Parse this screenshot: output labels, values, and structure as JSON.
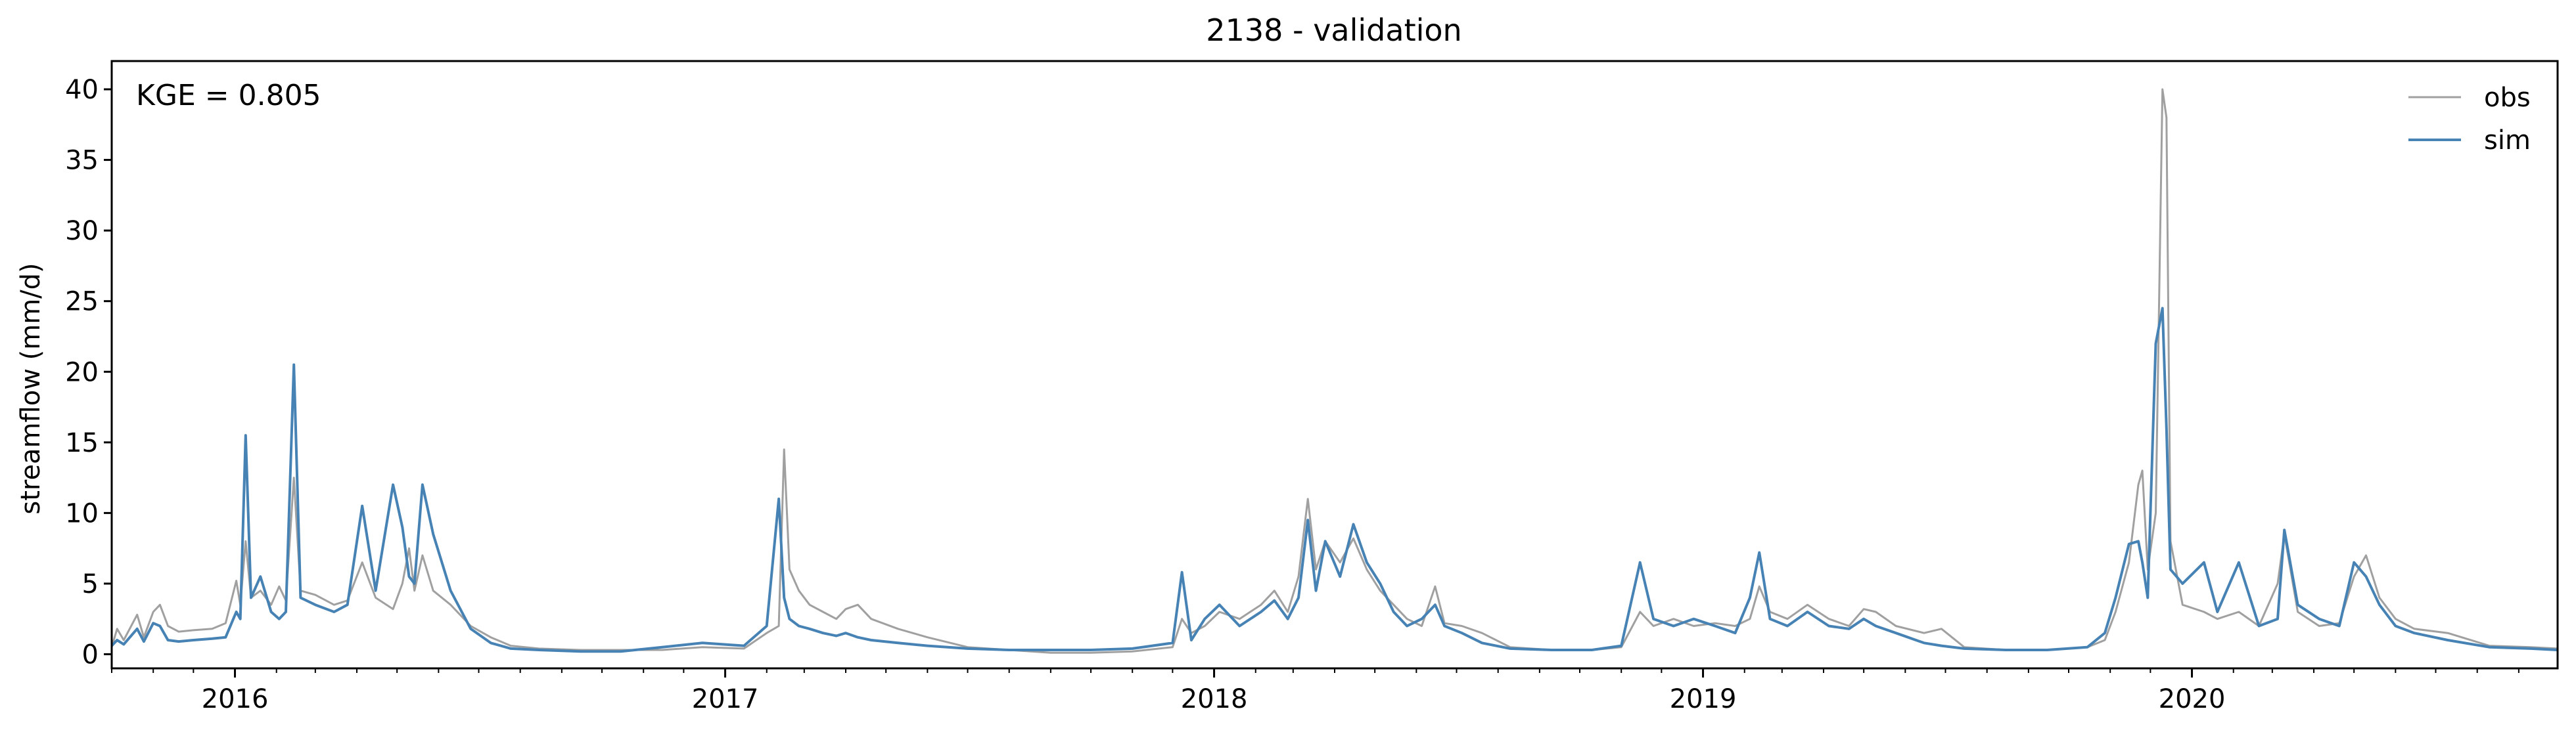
{
  "chart_data": {
    "type": "line",
    "title": "2138 - validation",
    "xlabel": "",
    "ylabel": "streamflow (mm/d)",
    "annotation": "KGE = 0.805",
    "xlim": [
      "2015-10-01",
      "2020-09-30"
    ],
    "ylim": [
      -1,
      42
    ],
    "yticks": [
      0,
      5,
      10,
      15,
      20,
      25,
      30,
      35,
      40
    ],
    "xticks": [
      {
        "date": "2016-01-01",
        "label": "2016"
      },
      {
        "date": "2017-01-01",
        "label": "2017"
      },
      {
        "date": "2018-01-01",
        "label": "2018"
      },
      {
        "date": "2019-01-01",
        "label": "2019"
      },
      {
        "date": "2020-01-01",
        "label": "2020"
      }
    ],
    "grid": false,
    "legend_position": "top-right",
    "series": [
      {
        "name": "obs",
        "color": "#a0a0a0",
        "points": [
          [
            "2015-10-01",
            0.5
          ],
          [
            "2015-10-05",
            1.8
          ],
          [
            "2015-10-10",
            1.0
          ],
          [
            "2015-10-20",
            2.8
          ],
          [
            "2015-10-25",
            1.2
          ],
          [
            "2015-11-01",
            3.0
          ],
          [
            "2015-11-06",
            3.5
          ],
          [
            "2015-11-12",
            2.0
          ],
          [
            "2015-11-20",
            1.6
          ],
          [
            "2015-12-01",
            1.7
          ],
          [
            "2015-12-15",
            1.8
          ],
          [
            "2015-12-25",
            2.2
          ],
          [
            "2016-01-02",
            5.2
          ],
          [
            "2016-01-05",
            3.5
          ],
          [
            "2016-01-09",
            8.0
          ],
          [
            "2016-01-13",
            4.0
          ],
          [
            "2016-01-20",
            4.5
          ],
          [
            "2016-01-28",
            3.5
          ],
          [
            "2016-02-03",
            4.8
          ],
          [
            "2016-02-08",
            3.8
          ],
          [
            "2016-02-14",
            12.5
          ],
          [
            "2016-02-19",
            4.5
          ],
          [
            "2016-03-01",
            4.2
          ],
          [
            "2016-03-15",
            3.5
          ],
          [
            "2016-03-25",
            3.8
          ],
          [
            "2016-04-05",
            6.5
          ],
          [
            "2016-04-15",
            4.0
          ],
          [
            "2016-04-28",
            3.2
          ],
          [
            "2016-05-05",
            5.0
          ],
          [
            "2016-05-10",
            7.5
          ],
          [
            "2016-05-14",
            4.5
          ],
          [
            "2016-05-20",
            7.0
          ],
          [
            "2016-05-28",
            4.5
          ],
          [
            "2016-06-10",
            3.5
          ],
          [
            "2016-06-25",
            2.0
          ],
          [
            "2016-07-10",
            1.2
          ],
          [
            "2016-07-25",
            0.6
          ],
          [
            "2016-08-15",
            0.4
          ],
          [
            "2016-09-15",
            0.3
          ],
          [
            "2016-10-15",
            0.3
          ],
          [
            "2016-11-15",
            0.3
          ],
          [
            "2016-12-15",
            0.5
          ],
          [
            "2017-01-15",
            0.4
          ],
          [
            "2017-02-01",
            1.5
          ],
          [
            "2017-02-10",
            2.0
          ],
          [
            "2017-02-14",
            14.5
          ],
          [
            "2017-02-18",
            6.0
          ],
          [
            "2017-02-25",
            4.5
          ],
          [
            "2017-03-05",
            3.5
          ],
          [
            "2017-03-15",
            3.0
          ],
          [
            "2017-03-25",
            2.5
          ],
          [
            "2017-04-01",
            3.2
          ],
          [
            "2017-04-10",
            3.5
          ],
          [
            "2017-04-20",
            2.5
          ],
          [
            "2017-05-10",
            1.8
          ],
          [
            "2017-06-01",
            1.2
          ],
          [
            "2017-07-01",
            0.5
          ],
          [
            "2017-08-01",
            0.3
          ],
          [
            "2017-09-01",
            0.1
          ],
          [
            "2017-10-01",
            0.1
          ],
          [
            "2017-11-01",
            0.2
          ],
          [
            "2017-12-01",
            0.5
          ],
          [
            "2017-12-08",
            2.5
          ],
          [
            "2017-12-15",
            1.5
          ],
          [
            "2017-12-25",
            2.0
          ],
          [
            "2018-01-05",
            3.0
          ],
          [
            "2018-01-20",
            2.5
          ],
          [
            "2018-02-05",
            3.5
          ],
          [
            "2018-02-15",
            4.5
          ],
          [
            "2018-02-25",
            3.0
          ],
          [
            "2018-03-05",
            5.5
          ],
          [
            "2018-03-12",
            11.0
          ],
          [
            "2018-03-18",
            6.0
          ],
          [
            "2018-03-25",
            8.0
          ],
          [
            "2018-04-05",
            6.5
          ],
          [
            "2018-04-15",
            8.2
          ],
          [
            "2018-04-25",
            6.0
          ],
          [
            "2018-05-05",
            4.5
          ],
          [
            "2018-05-15",
            3.5
          ],
          [
            "2018-05-25",
            2.5
          ],
          [
            "2018-06-05",
            2.0
          ],
          [
            "2018-06-15",
            4.8
          ],
          [
            "2018-06-22",
            2.2
          ],
          [
            "2018-07-05",
            2.0
          ],
          [
            "2018-07-20",
            1.5
          ],
          [
            "2018-08-10",
            0.5
          ],
          [
            "2018-09-10",
            0.3
          ],
          [
            "2018-10-10",
            0.3
          ],
          [
            "2018-11-01",
            0.5
          ],
          [
            "2018-11-15",
            3.0
          ],
          [
            "2018-11-25",
            2.0
          ],
          [
            "2018-12-10",
            2.5
          ],
          [
            "2018-12-25",
            2.0
          ],
          [
            "2019-01-10",
            2.2
          ],
          [
            "2019-01-25",
            2.0
          ],
          [
            "2019-02-05",
            2.5
          ],
          [
            "2019-02-12",
            4.8
          ],
          [
            "2019-02-20",
            3.0
          ],
          [
            "2019-03-05",
            2.5
          ],
          [
            "2019-03-20",
            3.5
          ],
          [
            "2019-04-05",
            2.5
          ],
          [
            "2019-04-20",
            2.0
          ],
          [
            "2019-05-01",
            3.2
          ],
          [
            "2019-05-10",
            3.0
          ],
          [
            "2019-05-25",
            2.0
          ],
          [
            "2019-06-15",
            1.5
          ],
          [
            "2019-06-28",
            1.8
          ],
          [
            "2019-07-15",
            0.5
          ],
          [
            "2019-08-15",
            0.3
          ],
          [
            "2019-09-15",
            0.3
          ],
          [
            "2019-10-15",
            0.5
          ],
          [
            "2019-10-28",
            1.0
          ],
          [
            "2019-11-05",
            3.0
          ],
          [
            "2019-11-15",
            6.5
          ],
          [
            "2019-11-22",
            12.0
          ],
          [
            "2019-11-25",
            13.0
          ],
          [
            "2019-11-29",
            6.0
          ],
          [
            "2019-12-05",
            10.0
          ],
          [
            "2019-12-10",
            40.0
          ],
          [
            "2019-12-13",
            38.0
          ],
          [
            "2019-12-16",
            8.0
          ],
          [
            "2019-12-25",
            3.5
          ],
          [
            "2020-01-10",
            3.0
          ],
          [
            "2020-01-20",
            2.5
          ],
          [
            "2020-02-05",
            3.0
          ],
          [
            "2020-02-20",
            2.0
          ],
          [
            "2020-03-05",
            5.0
          ],
          [
            "2020-03-10",
            8.5
          ],
          [
            "2020-03-20",
            3.0
          ],
          [
            "2020-04-05",
            2.0
          ],
          [
            "2020-04-20",
            2.2
          ],
          [
            "2020-05-01",
            5.5
          ],
          [
            "2020-05-10",
            7.0
          ],
          [
            "2020-05-20",
            4.0
          ],
          [
            "2020-06-01",
            2.5
          ],
          [
            "2020-06-15",
            1.8
          ],
          [
            "2020-07-10",
            1.5
          ],
          [
            "2020-08-10",
            0.6
          ],
          [
            "2020-09-10",
            0.5
          ],
          [
            "2020-09-30",
            0.4
          ]
        ]
      },
      {
        "name": "sim",
        "color": "#4682b4",
        "points": [
          [
            "2015-10-01",
            0.6
          ],
          [
            "2015-10-05",
            1.0
          ],
          [
            "2015-10-10",
            0.7
          ],
          [
            "2015-10-20",
            1.8
          ],
          [
            "2015-10-25",
            0.9
          ],
          [
            "2015-11-01",
            2.2
          ],
          [
            "2015-11-06",
            2.0
          ],
          [
            "2015-11-12",
            1.0
          ],
          [
            "2015-11-20",
            0.9
          ],
          [
            "2015-12-01",
            1.0
          ],
          [
            "2015-12-15",
            1.1
          ],
          [
            "2015-12-25",
            1.2
          ],
          [
            "2016-01-02",
            3.0
          ],
          [
            "2016-01-05",
            2.5
          ],
          [
            "2016-01-09",
            15.5
          ],
          [
            "2016-01-13",
            4.0
          ],
          [
            "2016-01-20",
            5.5
          ],
          [
            "2016-01-28",
            3.0
          ],
          [
            "2016-02-03",
            2.5
          ],
          [
            "2016-02-08",
            3.0
          ],
          [
            "2016-02-14",
            20.5
          ],
          [
            "2016-02-19",
            4.0
          ],
          [
            "2016-03-01",
            3.5
          ],
          [
            "2016-03-15",
            3.0
          ],
          [
            "2016-03-25",
            3.5
          ],
          [
            "2016-04-05",
            10.5
          ],
          [
            "2016-04-15",
            4.5
          ],
          [
            "2016-04-28",
            12.0
          ],
          [
            "2016-05-05",
            9.0
          ],
          [
            "2016-05-10",
            5.5
          ],
          [
            "2016-05-14",
            5.0
          ],
          [
            "2016-05-20",
            12.0
          ],
          [
            "2016-05-28",
            8.5
          ],
          [
            "2016-06-10",
            4.5
          ],
          [
            "2016-06-25",
            1.8
          ],
          [
            "2016-07-10",
            0.8
          ],
          [
            "2016-07-25",
            0.4
          ],
          [
            "2016-08-15",
            0.3
          ],
          [
            "2016-09-15",
            0.2
          ],
          [
            "2016-10-15",
            0.2
          ],
          [
            "2016-11-15",
            0.5
          ],
          [
            "2016-12-15",
            0.8
          ],
          [
            "2017-01-15",
            0.6
          ],
          [
            "2017-02-01",
            2.0
          ],
          [
            "2017-02-10",
            11.0
          ],
          [
            "2017-02-14",
            4.0
          ],
          [
            "2017-02-18",
            2.5
          ],
          [
            "2017-02-25",
            2.0
          ],
          [
            "2017-03-05",
            1.8
          ],
          [
            "2017-03-15",
            1.5
          ],
          [
            "2017-03-25",
            1.3
          ],
          [
            "2017-04-01",
            1.5
          ],
          [
            "2017-04-10",
            1.2
          ],
          [
            "2017-04-20",
            1.0
          ],
          [
            "2017-05-10",
            0.8
          ],
          [
            "2017-06-01",
            0.6
          ],
          [
            "2017-07-01",
            0.4
          ],
          [
            "2017-08-01",
            0.3
          ],
          [
            "2017-09-01",
            0.3
          ],
          [
            "2017-10-01",
            0.3
          ],
          [
            "2017-11-01",
            0.4
          ],
          [
            "2017-12-01",
            0.8
          ],
          [
            "2017-12-08",
            5.8
          ],
          [
            "2017-12-15",
            1.0
          ],
          [
            "2017-12-25",
            2.5
          ],
          [
            "2018-01-05",
            3.5
          ],
          [
            "2018-01-20",
            2.0
          ],
          [
            "2018-02-05",
            3.0
          ],
          [
            "2018-02-15",
            3.8
          ],
          [
            "2018-02-25",
            2.5
          ],
          [
            "2018-03-05",
            4.0
          ],
          [
            "2018-03-12",
            9.5
          ],
          [
            "2018-03-18",
            4.5
          ],
          [
            "2018-03-25",
            8.0
          ],
          [
            "2018-04-05",
            5.5
          ],
          [
            "2018-04-15",
            9.2
          ],
          [
            "2018-04-25",
            6.5
          ],
          [
            "2018-05-05",
            5.0
          ],
          [
            "2018-05-15",
            3.0
          ],
          [
            "2018-05-25",
            2.0
          ],
          [
            "2018-06-05",
            2.5
          ],
          [
            "2018-06-15",
            3.5
          ],
          [
            "2018-06-22",
            2.0
          ],
          [
            "2018-07-05",
            1.5
          ],
          [
            "2018-07-20",
            0.8
          ],
          [
            "2018-08-10",
            0.4
          ],
          [
            "2018-09-10",
            0.3
          ],
          [
            "2018-10-10",
            0.3
          ],
          [
            "2018-11-01",
            0.6
          ],
          [
            "2018-11-15",
            6.5
          ],
          [
            "2018-11-25",
            2.5
          ],
          [
            "2018-12-10",
            2.0
          ],
          [
            "2018-12-25",
            2.5
          ],
          [
            "2019-01-10",
            2.0
          ],
          [
            "2019-01-25",
            1.5
          ],
          [
            "2019-02-05",
            4.0
          ],
          [
            "2019-02-12",
            7.2
          ],
          [
            "2019-02-20",
            2.5
          ],
          [
            "2019-03-05",
            2.0
          ],
          [
            "2019-03-20",
            3.0
          ],
          [
            "2019-04-05",
            2.0
          ],
          [
            "2019-04-20",
            1.8
          ],
          [
            "2019-05-01",
            2.5
          ],
          [
            "2019-05-10",
            2.0
          ],
          [
            "2019-05-25",
            1.5
          ],
          [
            "2019-06-15",
            0.8
          ],
          [
            "2019-06-28",
            0.6
          ],
          [
            "2019-07-15",
            0.4
          ],
          [
            "2019-08-15",
            0.3
          ],
          [
            "2019-09-15",
            0.3
          ],
          [
            "2019-10-15",
            0.5
          ],
          [
            "2019-10-28",
            1.5
          ],
          [
            "2019-11-05",
            4.0
          ],
          [
            "2019-11-15",
            7.8
          ],
          [
            "2019-11-22",
            8.0
          ],
          [
            "2019-11-25",
            6.5
          ],
          [
            "2019-11-29",
            4.0
          ],
          [
            "2019-12-05",
            22.0
          ],
          [
            "2019-12-10",
            24.5
          ],
          [
            "2019-12-13",
            16.0
          ],
          [
            "2019-12-16",
            6.0
          ],
          [
            "2019-12-25",
            5.0
          ],
          [
            "2020-01-10",
            6.5
          ],
          [
            "2020-01-20",
            3.0
          ],
          [
            "2020-02-05",
            6.5
          ],
          [
            "2020-02-20",
            2.0
          ],
          [
            "2020-03-05",
            2.5
          ],
          [
            "2020-03-10",
            8.8
          ],
          [
            "2020-03-20",
            3.5
          ],
          [
            "2020-04-05",
            2.5
          ],
          [
            "2020-04-20",
            2.0
          ],
          [
            "2020-05-01",
            6.5
          ],
          [
            "2020-05-10",
            5.5
          ],
          [
            "2020-05-20",
            3.5
          ],
          [
            "2020-06-01",
            2.0
          ],
          [
            "2020-06-15",
            1.5
          ],
          [
            "2020-07-10",
            1.0
          ],
          [
            "2020-08-10",
            0.5
          ],
          [
            "2020-09-10",
            0.4
          ],
          [
            "2020-09-30",
            0.3
          ]
        ]
      }
    ]
  }
}
